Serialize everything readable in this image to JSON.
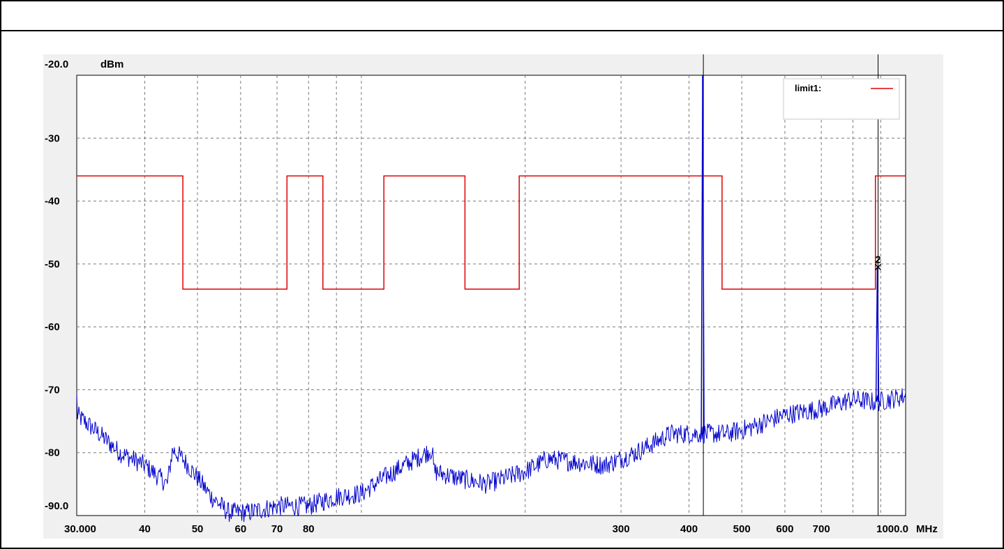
{
  "chart_data": {
    "type": "line",
    "x_scale": "log",
    "xlim": [
      30,
      1000
    ],
    "ylim": [
      -90,
      -20
    ],
    "y_unit": "dBm",
    "x_unit": "MHz",
    "grid": true,
    "y_ticks": [
      {
        "value": -20,
        "label": "-20.0"
      },
      {
        "value": -30,
        "label": "-30"
      },
      {
        "value": -40,
        "label": "-40"
      },
      {
        "value": -50,
        "label": "-50"
      },
      {
        "value": -60,
        "label": "-60"
      },
      {
        "value": -70,
        "label": "-70"
      },
      {
        "value": -80,
        "label": "-80"
      },
      {
        "value": -90,
        "label": "-90.0"
      }
    ],
    "x_ticks": [
      {
        "value": 30,
        "label": "30.000"
      },
      {
        "value": 40,
        "label": "40"
      },
      {
        "value": 50,
        "label": "50"
      },
      {
        "value": 60,
        "label": "60"
      },
      {
        "value": 70,
        "label": "70"
      },
      {
        "value": 80,
        "label": "80"
      },
      {
        "value": 300,
        "label": "300"
      },
      {
        "value": 400,
        "label": "400"
      },
      {
        "value": 500,
        "label": "500"
      },
      {
        "value": 600,
        "label": "600"
      },
      {
        "value": 700,
        "label": "700"
      },
      {
        "value": 1000,
        "label": "1000.0"
      }
    ],
    "x_gridlines": [
      40,
      50,
      60,
      70,
      80,
      90,
      100,
      200,
      300,
      400,
      500,
      600,
      700,
      800,
      900
    ],
    "legend": {
      "placement": "top-right",
      "entries": [
        {
          "label": "limit1:",
          "color": "#e00000"
        }
      ]
    },
    "limit_line": {
      "name": "limit1",
      "color": "#e00000",
      "points": [
        [
          30,
          -36
        ],
        [
          47,
          -36
        ],
        [
          47,
          -54
        ],
        [
          73,
          -54
        ],
        [
          73,
          -36
        ],
        [
          85,
          -36
        ],
        [
          85,
          -54
        ],
        [
          110,
          -54
        ],
        [
          110,
          -36
        ],
        [
          155,
          -36
        ],
        [
          155,
          -54
        ],
        [
          195,
          -54
        ],
        [
          195,
          -36
        ],
        [
          460,
          -36
        ],
        [
          460,
          -54
        ],
        [
          880,
          -54
        ],
        [
          880,
          -36
        ],
        [
          1000,
          -36
        ]
      ]
    },
    "trace": {
      "color": "#0000cc",
      "baseline": [
        [
          30,
          -74
        ],
        [
          33,
          -77
        ],
        [
          36,
          -80
        ],
        [
          40,
          -82
        ],
        [
          44,
          -85
        ],
        [
          45,
          -79.5
        ],
        [
          47,
          -81
        ],
        [
          50,
          -84
        ],
        [
          53,
          -87
        ],
        [
          57,
          -89.5
        ],
        [
          62,
          -89.5
        ],
        [
          70,
          -88.5
        ],
        [
          80,
          -88.5
        ],
        [
          90,
          -87
        ],
        [
          100,
          -86.5
        ],
        [
          110,
          -84
        ],
        [
          120,
          -82
        ],
        [
          135,
          -79.5
        ],
        [
          136,
          -83
        ],
        [
          150,
          -84
        ],
        [
          170,
          -85
        ],
        [
          200,
          -83
        ],
        [
          220,
          -81
        ],
        [
          250,
          -81.5
        ],
        [
          280,
          -82
        ],
        [
          320,
          -80
        ],
        [
          370,
          -77
        ],
        [
          420,
          -77
        ],
        [
          470,
          -77
        ],
        [
          520,
          -76
        ],
        [
          600,
          -74
        ],
        [
          700,
          -73
        ],
        [
          800,
          -71.5
        ],
        [
          880,
          -72
        ],
        [
          1000,
          -71
        ]
      ],
      "spikes": [
        {
          "x": 425,
          "peak": -20
        },
        {
          "x": 890,
          "peak": -50.5
        }
      ]
    },
    "markers": [
      {
        "label": "2",
        "x": 890,
        "y": -50.5
      }
    ],
    "vertical_lines": [
      425,
      890
    ],
    "y_unit_label": "dBm",
    "x_unit_label": "MHz"
  }
}
